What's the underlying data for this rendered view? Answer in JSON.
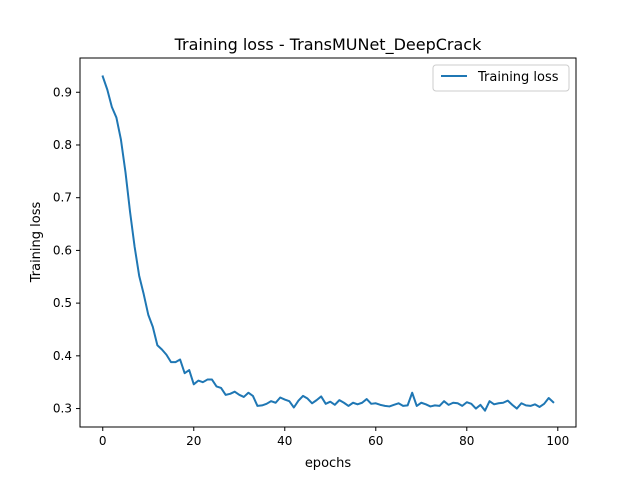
{
  "chart_data": {
    "type": "line",
    "title": "Training loss - TransMUNet_DeepCrack",
    "xlabel": "epochs",
    "ylabel": "Training loss",
    "xlim": [
      -5,
      104
    ],
    "ylim": [
      0.265,
      0.965
    ],
    "xticks": [
      0,
      20,
      40,
      60,
      80,
      100
    ],
    "yticks": [
      0.3,
      0.4,
      0.5,
      0.6,
      0.7,
      0.8,
      0.9
    ],
    "grid": false,
    "legend_position": "top-right",
    "colors": {
      "series": "#1f77b4",
      "axes": "#000000",
      "legend_border": "#cccccc"
    },
    "series": [
      {
        "name": "Training loss",
        "x": [
          0,
          1,
          2,
          3,
          4,
          5,
          6,
          7,
          8,
          9,
          10,
          11,
          12,
          13,
          14,
          15,
          16,
          17,
          18,
          19,
          20,
          21,
          22,
          23,
          24,
          25,
          26,
          27,
          28,
          29,
          30,
          31,
          32,
          33,
          34,
          35,
          36,
          37,
          38,
          39,
          40,
          41,
          42,
          43,
          44,
          45,
          46,
          47,
          48,
          49,
          50,
          51,
          52,
          53,
          54,
          55,
          56,
          57,
          58,
          59,
          60,
          61,
          62,
          63,
          64,
          65,
          66,
          67,
          68,
          69,
          70,
          71,
          72,
          73,
          74,
          75,
          76,
          77,
          78,
          79,
          80,
          81,
          82,
          83,
          84,
          85,
          86,
          87,
          88,
          89,
          90,
          91,
          92,
          93,
          94,
          95,
          96,
          97,
          98,
          99
        ],
        "values": [
          0.93,
          0.905,
          0.872,
          0.852,
          0.81,
          0.748,
          0.673,
          0.607,
          0.552,
          0.517,
          0.478,
          0.455,
          0.42,
          0.412,
          0.402,
          0.388,
          0.388,
          0.393,
          0.367,
          0.373,
          0.346,
          0.353,
          0.35,
          0.355,
          0.355,
          0.342,
          0.339,
          0.326,
          0.328,
          0.332,
          0.326,
          0.322,
          0.33,
          0.324,
          0.305,
          0.306,
          0.309,
          0.314,
          0.311,
          0.321,
          0.317,
          0.314,
          0.302,
          0.315,
          0.324,
          0.319,
          0.31,
          0.316,
          0.323,
          0.309,
          0.313,
          0.307,
          0.316,
          0.311,
          0.305,
          0.311,
          0.308,
          0.311,
          0.318,
          0.309,
          0.31,
          0.307,
          0.305,
          0.304,
          0.307,
          0.31,
          0.305,
          0.306,
          0.33,
          0.305,
          0.311,
          0.308,
          0.304,
          0.306,
          0.305,
          0.314,
          0.307,
          0.311,
          0.31,
          0.305,
          0.312,
          0.309,
          0.3,
          0.307,
          0.296,
          0.314,
          0.308,
          0.31,
          0.311,
          0.315,
          0.307,
          0.3,
          0.31,
          0.306,
          0.305,
          0.308,
          0.303,
          0.309,
          0.32,
          0.312
        ]
      }
    ]
  }
}
